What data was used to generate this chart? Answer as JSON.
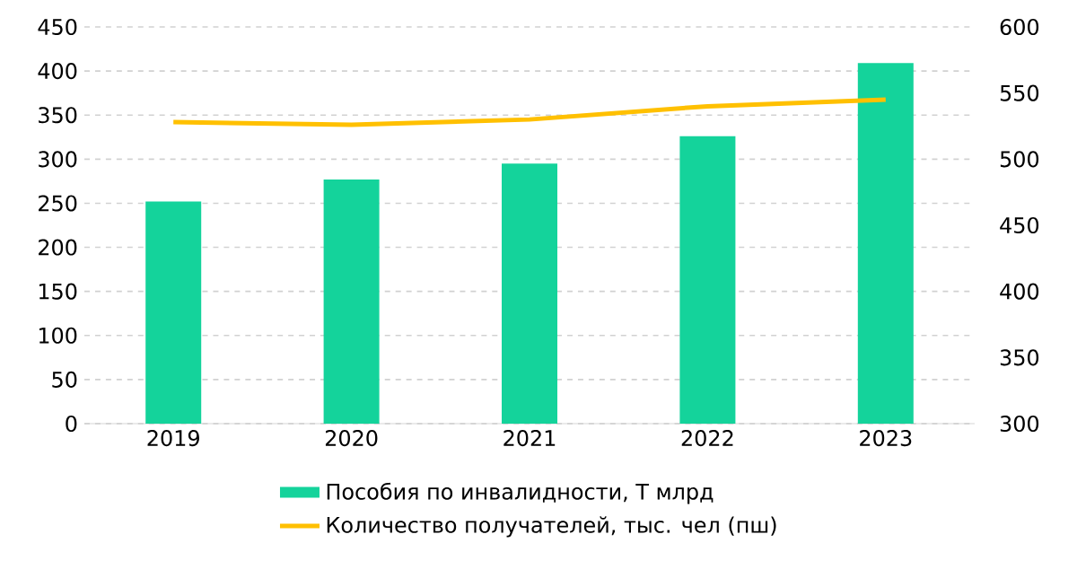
{
  "chart_data": {
    "type": "bar",
    "categories": [
      "2019",
      "2020",
      "2021",
      "2022",
      "2023"
    ],
    "series": [
      {
        "name": "Пособия по инвалидности, Т млрд",
        "color": "#14d39b",
        "values": [
          252,
          277,
          295,
          326,
          409
        ]
      },
      {
        "name": "Количество получателей, тыс. чел (пш)",
        "type": "line",
        "axis": "y2",
        "color": "#ffc000",
        "values": [
          528,
          526,
          530,
          540,
          545
        ]
      }
    ],
    "ylim": [
      0,
      450
    ],
    "yticks": [
      0,
      50,
      100,
      150,
      200,
      250,
      300,
      350,
      400,
      450
    ],
    "y2lim": [
      300,
      600
    ],
    "y2ticks": [
      300,
      350,
      400,
      450,
      500,
      550,
      600
    ],
    "grid": "y",
    "legend": "bottom",
    "line_style": "solid",
    "marker": "none"
  }
}
